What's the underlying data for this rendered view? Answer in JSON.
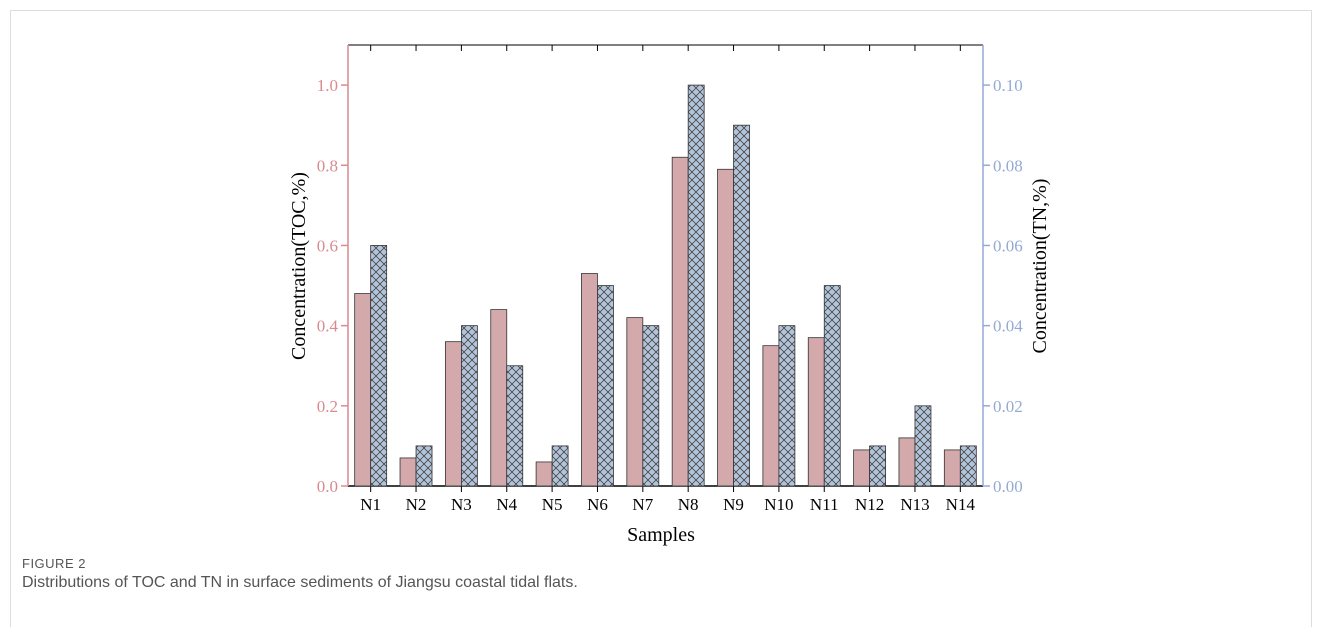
{
  "chart_data": {
    "type": "bar",
    "x_label": "Samples",
    "y_label": "Concentration(TOC,%)",
    "y2_label": "Concentration(TN,%)",
    "categories": [
      "N1",
      "N2",
      "N3",
      "N4",
      "N5",
      "N6",
      "N7",
      "N8",
      "N9",
      "N10",
      "N11",
      "N12",
      "N13",
      "N14"
    ],
    "series": [
      {
        "color": "#d3a9ab",
        "values": [
          0.48,
          0.07,
          0.36,
          0.44,
          0.06,
          0.53,
          0.42,
          0.82,
          0.79,
          0.35,
          0.37,
          0.09,
          0.12,
          0.09
        ]
      },
      {
        "color": "#b3c3d9",
        "axis": "y2",
        "hatch": true,
        "values": [
          0.06,
          0.01,
          0.04,
          0.03,
          0.01,
          0.05,
          0.04,
          0.1,
          0.09,
          0.04,
          0.05,
          0.01,
          0.02,
          0.01
        ]
      }
    ],
    "ylim": [
      0,
      1.1
    ],
    "yticks": [
      {
        "value": 0,
        "label": "0.0"
      },
      0.2,
      0.4,
      0.6,
      0.8,
      {
        "value": 1,
        "label": "1.0"
      }
    ],
    "y2lim": [
      0,
      0.11
    ],
    "y2ticks": [
      {
        "value": 0,
        "label": "0.00"
      },
      {
        "value": 0.02,
        "label": "0.02"
      },
      {
        "value": 0.04,
        "label": "0.04"
      },
      {
        "value": 0.06,
        "label": "0.06"
      },
      {
        "value": 0.08,
        "label": "0.08"
      },
      {
        "value": 0.1,
        "label": "0.10"
      }
    ],
    "y_axis_color": "#d98a90",
    "y2_axis_color": "#93aad6"
  },
  "figure": {
    "label": "FIGURE 2",
    "caption": "Distributions of TOC and TN in surface sediments of Jiangsu coastal tidal flats."
  }
}
